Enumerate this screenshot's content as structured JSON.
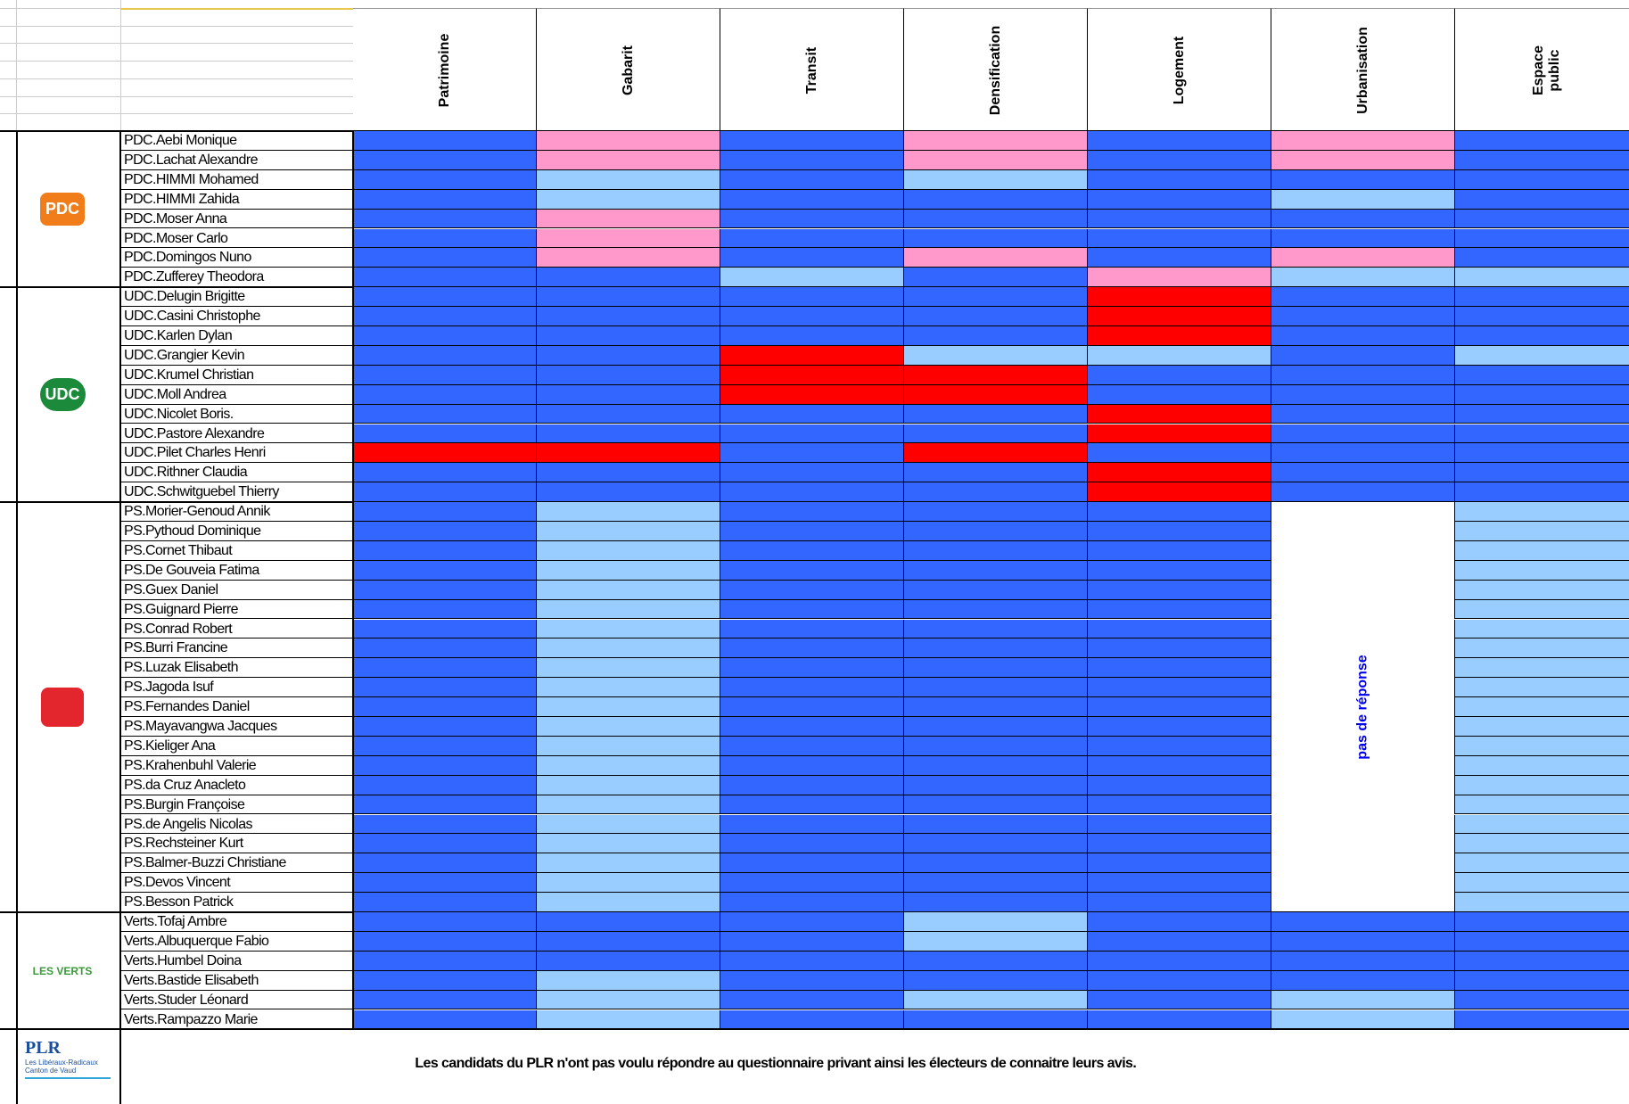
{
  "columns": [
    "Patrimoine",
    "Gabarit",
    "Transit",
    "Densification",
    "Logement",
    "Urbanisation",
    "Espace public"
  ],
  "groups": [
    {
      "logo": {
        "text": "PDC",
        "color": "#f07d1a"
      },
      "rows": [
        {
          "name": "PDC.Aebi Monique",
          "cells": [
            "#3366ff",
            "#ff99cc",
            "#3366ff",
            "#ff99cc",
            "#3366ff",
            "#ff99cc",
            "#3366ff"
          ]
        },
        {
          "name": "PDC.Lachat Alexandre",
          "cells": [
            "#3366ff",
            "#ff99cc",
            "#3366ff",
            "#ff99cc",
            "#3366ff",
            "#ff99cc",
            "#3366ff"
          ]
        },
        {
          "name": "PDC.HIMMI Mohamed",
          "cells": [
            "#3366ff",
            "#99ccff",
            "#3366ff",
            "#99ccff",
            "#3366ff",
            "#3366ff",
            "#3366ff"
          ]
        },
        {
          "name": "PDC.HIMMI Zahida",
          "cells": [
            "#3366ff",
            "#99ccff",
            "#3366ff",
            "#3366ff",
            "#3366ff",
            "#99ccff",
            "#3366ff"
          ]
        },
        {
          "name": "PDC.Moser  Anna",
          "cells": [
            "#3366ff",
            "#ff99cc",
            "#3366ff",
            "#3366ff",
            "#3366ff",
            "#3366ff",
            "#3366ff"
          ]
        },
        {
          "name": "PDC.Moser Carlo",
          "cells": [
            "#3366ff",
            "#ff99cc",
            "#3366ff",
            "#3366ff",
            "#3366ff",
            "#3366ff",
            "#3366ff"
          ]
        },
        {
          "name": "PDC.Domingos Nuno",
          "cells": [
            "#3366ff",
            "#ff99cc",
            "#3366ff",
            "#ff99cc",
            "#3366ff",
            "#ff99cc",
            "#3366ff"
          ]
        },
        {
          "name": "PDC.Zufferey Theodora",
          "cells": [
            "#3366ff",
            "#3366ff",
            "#99ccff",
            "#3366ff",
            "#ff99cc",
            "#99ccff",
            "#99ccff"
          ]
        }
      ]
    },
    {
      "logo": {
        "text": "UDC",
        "color": "#1b8a3a"
      },
      "rows": [
        {
          "name": "UDC.Delugin Brigitte",
          "cells": [
            "#3366ff",
            "#3366ff",
            "#3366ff",
            "#3366ff",
            "#ff0000",
            "#3366ff",
            "#3366ff"
          ]
        },
        {
          "name": "UDC.Casini Christophe",
          "cells": [
            "#3366ff",
            "#3366ff",
            "#3366ff",
            "#3366ff",
            "#ff0000",
            "#3366ff",
            "#3366ff"
          ]
        },
        {
          "name": "UDC.Karlen Dylan",
          "cells": [
            "#3366ff",
            "#3366ff",
            "#3366ff",
            "#3366ff",
            "#ff0000",
            "#3366ff",
            "#3366ff"
          ]
        },
        {
          "name": "UDC.Grangier Kevin",
          "cells": [
            "#3366ff",
            "#3366ff",
            "#ff0000",
            "#99ccff",
            "#99ccff",
            "#3366ff",
            "#99ccff"
          ]
        },
        {
          "name": "UDC.Krumel Christian",
          "cells": [
            "#3366ff",
            "#3366ff",
            "#ff0000",
            "#ff0000",
            "#3366ff",
            "#3366ff",
            "#3366ff"
          ]
        },
        {
          "name": "UDC.Moll Andrea",
          "cells": [
            "#3366ff",
            "#3366ff",
            "#ff0000",
            "#ff0000",
            "#3366ff",
            "#3366ff",
            "#3366ff"
          ]
        },
        {
          "name": "UDC.Nicolet Boris.",
          "cells": [
            "#3366ff",
            "#3366ff",
            "#3366ff",
            "#3366ff",
            "#ff0000",
            "#3366ff",
            "#3366ff"
          ]
        },
        {
          "name": "UDC.Pastore Alexandre",
          "cells": [
            "#3366ff",
            "#3366ff",
            "#3366ff",
            "#3366ff",
            "#ff0000",
            "#3366ff",
            "#3366ff"
          ]
        },
        {
          "name": "UDC.Pilet Charles Henri",
          "cells": [
            "#ff0000",
            "#ff0000",
            "#3366ff",
            "#ff0000",
            "#3366ff",
            "#3366ff",
            "#3366ff"
          ]
        },
        {
          "name": "UDC.Rithner Claudia",
          "cells": [
            "#3366ff",
            "#3366ff",
            "#3366ff",
            "#3366ff",
            "#ff0000",
            "#3366ff",
            "#3366ff"
          ]
        },
        {
          "name": "UDC.Schwitguebel Thierry",
          "cells": [
            "#3366ff",
            "#3366ff",
            "#3366ff",
            "#3366ff",
            "#ff0000",
            "#3366ff",
            "#3366ff"
          ]
        }
      ]
    },
    {
      "logo": {
        "text": "",
        "color": "#e3262d"
      },
      "note": "pas de réponse",
      "rows": [
        {
          "name": "PS.Morier-Genoud Annik",
          "cells": [
            "#3366ff",
            "#99ccff",
            "#3366ff",
            "#3366ff",
            "#3366ff",
            "#ffffff",
            "#99ccff"
          ]
        },
        {
          "name": "PS.Pythoud Dominique",
          "cells": [
            "#3366ff",
            "#99ccff",
            "#3366ff",
            "#3366ff",
            "#3366ff",
            "#ffffff",
            "#99ccff"
          ]
        },
        {
          "name": "PS.Cornet Thibaut",
          "cells": [
            "#3366ff",
            "#99ccff",
            "#3366ff",
            "#3366ff",
            "#3366ff",
            "#ffffff",
            "#99ccff"
          ]
        },
        {
          "name": "PS.De Gouveia Fatima",
          "cells": [
            "#3366ff",
            "#99ccff",
            "#3366ff",
            "#3366ff",
            "#3366ff",
            "#ffffff",
            "#99ccff"
          ]
        },
        {
          "name": "PS.Guex Daniel",
          "cells": [
            "#3366ff",
            "#99ccff",
            "#3366ff",
            "#3366ff",
            "#3366ff",
            "#ffffff",
            "#99ccff"
          ]
        },
        {
          "name": "PS.Guignard Pierre",
          "cells": [
            "#3366ff",
            "#99ccff",
            "#3366ff",
            "#3366ff",
            "#3366ff",
            "#ffffff",
            "#99ccff"
          ]
        },
        {
          "name": "PS.Conrad Robert",
          "cells": [
            "#3366ff",
            "#99ccff",
            "#3366ff",
            "#3366ff",
            "#3366ff",
            "#ffffff",
            "#99ccff"
          ]
        },
        {
          "name": "PS.Burri Francine",
          "cells": [
            "#3366ff",
            "#99ccff",
            "#3366ff",
            "#3366ff",
            "#3366ff",
            "#ffffff",
            "#99ccff"
          ]
        },
        {
          "name": "PS.Luzak Elisabeth",
          "cells": [
            "#3366ff",
            "#99ccff",
            "#3366ff",
            "#3366ff",
            "#3366ff",
            "#ffffff",
            "#99ccff"
          ]
        },
        {
          "name": "PS.Jagoda Isuf",
          "cells": [
            "#3366ff",
            "#99ccff",
            "#3366ff",
            "#3366ff",
            "#3366ff",
            "#ffffff",
            "#99ccff"
          ]
        },
        {
          "name": "PS.Fernandes Daniel",
          "cells": [
            "#3366ff",
            "#99ccff",
            "#3366ff",
            "#3366ff",
            "#3366ff",
            "#ffffff",
            "#99ccff"
          ]
        },
        {
          "name": "PS.Mayavangwa Jacques",
          "cells": [
            "#3366ff",
            "#99ccff",
            "#3366ff",
            "#3366ff",
            "#3366ff",
            "#ffffff",
            "#99ccff"
          ]
        },
        {
          "name": "PS.Kieliger Ana",
          "cells": [
            "#3366ff",
            "#99ccff",
            "#3366ff",
            "#3366ff",
            "#3366ff",
            "#ffffff",
            "#99ccff"
          ]
        },
        {
          "name": "PS.Krahenbuhl Valerie",
          "cells": [
            "#3366ff",
            "#99ccff",
            "#3366ff",
            "#3366ff",
            "#3366ff",
            "#ffffff",
            "#99ccff"
          ]
        },
        {
          "name": "PS.da Cruz Anacleto",
          "cells": [
            "#3366ff",
            "#99ccff",
            "#3366ff",
            "#3366ff",
            "#3366ff",
            "#ffffff",
            "#99ccff"
          ]
        },
        {
          "name": "PS.Burgin Françoise",
          "cells": [
            "#3366ff",
            "#99ccff",
            "#3366ff",
            "#3366ff",
            "#3366ff",
            "#ffffff",
            "#99ccff"
          ]
        },
        {
          "name": "PS.de Angelis Nicolas",
          "cells": [
            "#3366ff",
            "#99ccff",
            "#3366ff",
            "#3366ff",
            "#3366ff",
            "#ffffff",
            "#99ccff"
          ]
        },
        {
          "name": "PS.Rechsteiner Kurt",
          "cells": [
            "#3366ff",
            "#99ccff",
            "#3366ff",
            "#3366ff",
            "#3366ff",
            "#ffffff",
            "#99ccff"
          ]
        },
        {
          "name": "PS.Balmer-Buzzi Christiane",
          "cells": [
            "#3366ff",
            "#99ccff",
            "#3366ff",
            "#3366ff",
            "#3366ff",
            "#ffffff",
            "#99ccff"
          ]
        },
        {
          "name": "PS.Devos Vincent",
          "cells": [
            "#3366ff",
            "#99ccff",
            "#3366ff",
            "#3366ff",
            "#3366ff",
            "#ffffff",
            "#99ccff"
          ]
        },
        {
          "name": "PS.Besson Patrick",
          "cells": [
            "#3366ff",
            "#99ccff",
            "#3366ff",
            "#3366ff",
            "#3366ff",
            "#ffffff",
            "#99ccff"
          ]
        }
      ]
    },
    {
      "logo": {
        "text": "LES VERTS",
        "color": "#3a9a3a"
      },
      "rows": [
        {
          "name": "Verts.Tofaj Ambre",
          "cells": [
            "#3366ff",
            "#3366ff",
            "#3366ff",
            "#99ccff",
            "#3366ff",
            "#3366ff",
            "#3366ff"
          ]
        },
        {
          "name": "Verts.Albuquerque Fabio",
          "cells": [
            "#3366ff",
            "#3366ff",
            "#3366ff",
            "#99ccff",
            "#3366ff",
            "#3366ff",
            "#3366ff"
          ]
        },
        {
          "name": "Verts.Humbel Doina",
          "cells": [
            "#3366ff",
            "#3366ff",
            "#3366ff",
            "#3366ff",
            "#3366ff",
            "#3366ff",
            "#3366ff"
          ]
        },
        {
          "name": "Verts.Bastide Elisabeth",
          "cells": [
            "#3366ff",
            "#99ccff",
            "#3366ff",
            "#3366ff",
            "#3366ff",
            "#3366ff",
            "#3366ff"
          ]
        },
        {
          "name": "Verts.Studer Léonard",
          "cells": [
            "#3366ff",
            "#99ccff",
            "#3366ff",
            "#99ccff",
            "#3366ff",
            "#99ccff",
            "#3366ff"
          ]
        },
        {
          "name": "Verts.Rampazzo Marie",
          "cells": [
            "#3366ff",
            "#99ccff",
            "#3366ff",
            "#3366ff",
            "#3366ff",
            "#99ccff",
            "#3366ff"
          ]
        }
      ]
    }
  ],
  "footer": {
    "logo": {
      "title": "PLR",
      "line1": "Les Libéraux-Radicaux",
      "line2": "Canton de Vaud"
    },
    "message": "Les candidats du PLR n'ont pas voulu répondre au questionnaire privant ainsi les électeurs de connaitre leurs avis."
  }
}
